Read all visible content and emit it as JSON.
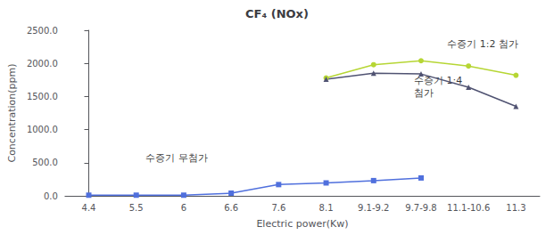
{
  "chart_data": {
    "type": "line",
    "title": "CF₄ (NOx)",
    "x_label": "Electric power(Kw)",
    "y_label": "Concentration(ppm)",
    "categories": [
      "4.4",
      "5.5",
      "6",
      "6.6",
      "7.6",
      "8.1",
      "9.1-9.2",
      "9.7-9.8",
      "11.1-10.6",
      "11.3"
    ],
    "series": [
      {
        "name": "수증기 무첨가",
        "values": [
          10,
          10,
          10,
          40,
          170,
          195,
          230,
          270,
          null,
          null
        ],
        "marker": "square",
        "line_style": "solid"
      },
      {
        "name": "수증기 1:2 첨가",
        "values": [
          null,
          null,
          null,
          null,
          null,
          1780,
          1980,
          2040,
          1960,
          1820
        ],
        "marker": "circle",
        "line_style": "solid"
      },
      {
        "name": "수증기 1:4 첨가",
        "values": [
          null,
          null,
          null,
          null,
          null,
          1760,
          1850,
          1840,
          1640,
          1350
        ],
        "marker": "triangle",
        "line_style": "solid"
      }
    ],
    "annotations": [
      {
        "text": "수증기 무첨가",
        "x": 1.2,
        "y": 480
      },
      {
        "text": "수증기 1:2 첨가",
        "x": 7.55,
        "y": 2200
      },
      {
        "text": "수증기 1:4\n첨가",
        "x": 6.85,
        "y": 1460
      }
    ],
    "ylim": [
      0,
      2500
    ],
    "yticks": [
      {
        "value": 0,
        "label": "0.0"
      },
      {
        "value": 500,
        "label": "500.0"
      },
      {
        "value": 1000,
        "label": "1000.0"
      },
      {
        "value": 1500,
        "label": "1500.0"
      },
      {
        "value": 2000,
        "label": "2000.0"
      },
      {
        "value": 2500,
        "label": "2500.0"
      }
    ],
    "grid": false,
    "legend": "none"
  }
}
